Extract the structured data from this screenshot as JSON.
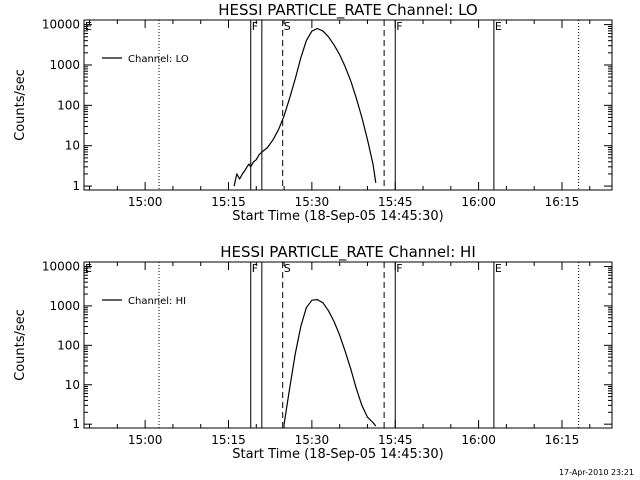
{
  "footer_text": "17-Apr-2010 23:21",
  "chart_data": [
    {
      "type": "line",
      "title": "HESSI PARTICLE_RATE Channel: LO",
      "xlabel": "Start Time (18-Sep-05 14:45:30)",
      "ylabel": "Counts/sec",
      "xlim": [
        "14:49",
        "16:24"
      ],
      "x_ticks": [
        "15:00",
        "15:15",
        "15:30",
        "15:45",
        "16:00",
        "16:15"
      ],
      "yscale": "log",
      "ylim": [
        0.8,
        13000
      ],
      "y_ticks": [
        1,
        10,
        100,
        1000,
        10000
      ],
      "y_tick_labels": [
        "1",
        "10",
        "100",
        "1000",
        "10000"
      ],
      "grid": false,
      "legend_position": "top-left",
      "series": [
        {
          "name": "Channel: LO",
          "color": "#000000",
          "x": [
            "15:16:00",
            "15:16:30",
            "15:17:00",
            "15:17:30",
            "15:18:00",
            "15:18:20",
            "15:18:40",
            "15:19:00",
            "15:19:30",
            "15:20:00",
            "15:20:30",
            "15:21:00",
            "15:22:00",
            "15:23:00",
            "15:24:00",
            "15:25:00",
            "15:26:00",
            "15:27:00",
            "15:28:00",
            "15:29:00",
            "15:30:00",
            "15:31:00",
            "15:32:00",
            "15:33:00",
            "15:34:00",
            "15:35:00",
            "15:36:00",
            "15:37:00",
            "15:38:00",
            "15:39:00",
            "15:40:00",
            "15:41:00",
            "15:41:30"
          ],
          "y": [
            1,
            2,
            1.5,
            2,
            2.5,
            3,
            3.5,
            3,
            4,
            4.5,
            6,
            7,
            9,
            14,
            25,
            55,
            150,
            450,
            1500,
            4000,
            6900,
            8000,
            6900,
            5000,
            3100,
            1800,
            900,
            400,
            150,
            50,
            14,
            3.5,
            1.2
          ]
        }
      ],
      "markers": [
        {
          "label": "E",
          "time": "14:49:00",
          "style": "solid"
        },
        {
          "label": "",
          "time": "15:02:30",
          "style": "dotted"
        },
        {
          "label": "F",
          "time": "15:19:00",
          "style": "solid"
        },
        {
          "label": "",
          "time": "15:21:00",
          "style": "solid"
        },
        {
          "label": "S",
          "time": "15:24:45",
          "style": "dashed"
        },
        {
          "label": "",
          "time": "15:43:00",
          "style": "dashed"
        },
        {
          "label": "F",
          "time": "15:45:00",
          "style": "solid"
        },
        {
          "label": "E",
          "time": "16:02:45",
          "style": "solid"
        },
        {
          "label": "",
          "time": "16:18:00",
          "style": "dotted"
        }
      ]
    },
    {
      "type": "line",
      "title": "HESSI PARTICLE_RATE Channel: HI",
      "xlabel": "Start Time (18-Sep-05 14:45:30)",
      "ylabel": "Counts/sec",
      "xlim": [
        "14:49",
        "16:24"
      ],
      "x_ticks": [
        "15:00",
        "15:15",
        "15:30",
        "15:45",
        "16:00",
        "16:15"
      ],
      "yscale": "log",
      "ylim": [
        0.8,
        13000
      ],
      "y_ticks": [
        1,
        10,
        100,
        1000,
        10000
      ],
      "y_tick_labels": [
        "1",
        "10",
        "100",
        "1000",
        "10000"
      ],
      "grid": false,
      "legend_position": "top-left",
      "series": [
        {
          "name": "Channel: HI",
          "color": "#000000",
          "x": [
            "15:25:00",
            "15:26:00",
            "15:27:00",
            "15:28:00",
            "15:29:00",
            "15:30:00",
            "15:31:00",
            "15:32:00",
            "15:33:00",
            "15:34:00",
            "15:35:00",
            "15:36:00",
            "15:37:00",
            "15:38:00",
            "15:39:00",
            "15:40:00",
            "15:41:00",
            "15:41:30"
          ],
          "y": [
            1,
            8,
            60,
            300,
            900,
            1400,
            1450,
            1200,
            750,
            400,
            180,
            70,
            25,
            8,
            3,
            1.5,
            1.1,
            0.9
          ]
        }
      ],
      "markers": [
        {
          "label": "E",
          "time": "14:49:00",
          "style": "solid"
        },
        {
          "label": "",
          "time": "15:02:30",
          "style": "dotted"
        },
        {
          "label": "F",
          "time": "15:19:00",
          "style": "solid"
        },
        {
          "label": "",
          "time": "15:21:00",
          "style": "solid"
        },
        {
          "label": "S",
          "time": "15:24:45",
          "style": "dashed"
        },
        {
          "label": "",
          "time": "15:43:00",
          "style": "dashed"
        },
        {
          "label": "F",
          "time": "15:45:00",
          "style": "solid"
        },
        {
          "label": "E",
          "time": "16:02:45",
          "style": "solid"
        },
        {
          "label": "",
          "time": "16:18:00",
          "style": "dotted"
        }
      ]
    }
  ]
}
